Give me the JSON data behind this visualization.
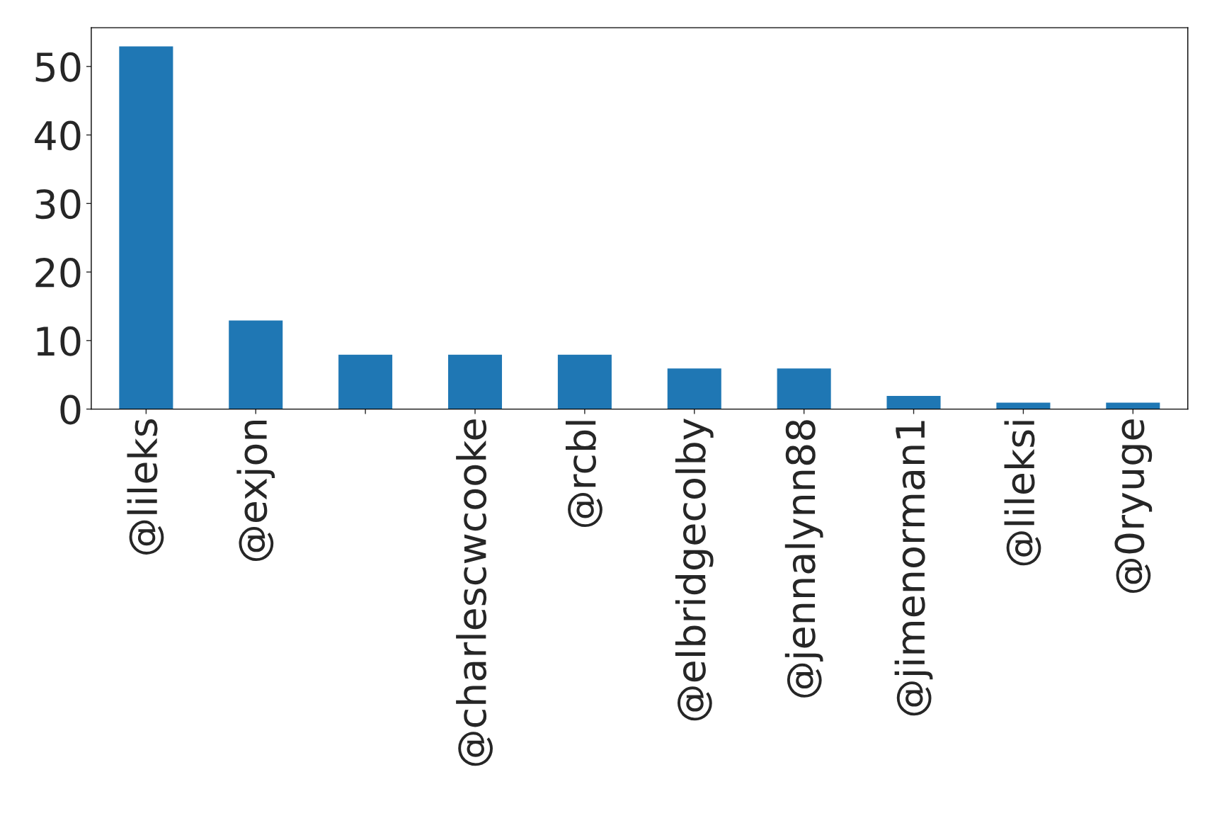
{
  "chart_data": {
    "type": "bar",
    "categories": [
      "@lileks",
      "@exjon",
      null,
      "@charlescwcooke",
      "@rcbl",
      "@elbridgecolby",
      "@jennalynn88",
      "@jimenorman1",
      "@lileksi",
      "@0ryuge"
    ],
    "values": [
      53,
      13,
      8,
      8,
      8,
      6,
      6,
      2,
      1,
      1
    ],
    "color": "#1f77b4",
    "ylim": [
      0,
      55.65
    ],
    "yticks": [
      0,
      10,
      20,
      30,
      40,
      50
    ],
    "grid": false,
    "legend": false
  }
}
